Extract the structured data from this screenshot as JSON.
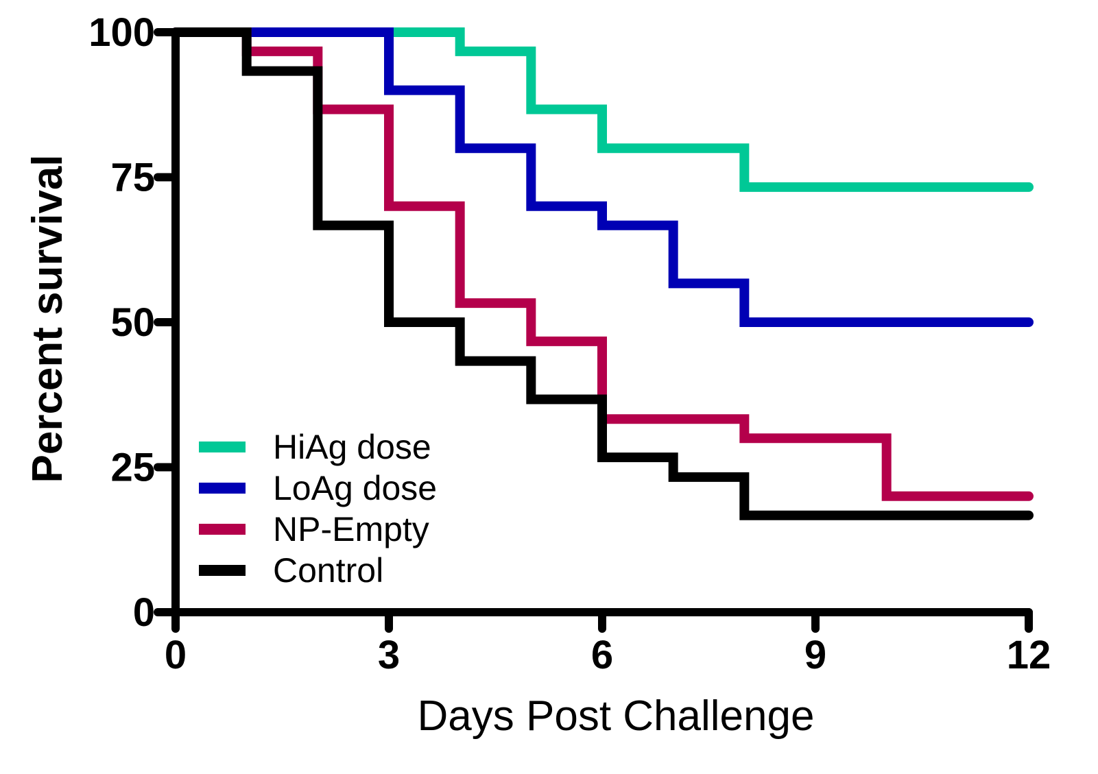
{
  "chart_data": {
    "type": "line",
    "step": true,
    "xlabel": "Days Post Challenge",
    "ylabel": "Percent survival",
    "xlim": [
      0,
      12
    ],
    "ylim": [
      0,
      100
    ],
    "xticks": [
      "0",
      "3",
      "6",
      "9",
      "12"
    ],
    "yticks": [
      "0",
      "25",
      "50",
      "75",
      "100"
    ],
    "legend_position": "bottom-left",
    "grid": false,
    "series": [
      {
        "name": "HiAg dose",
        "color": "#00c896",
        "x": [
          0,
          4,
          5,
          6,
          8,
          12
        ],
        "y": [
          100,
          96.7,
          86.7,
          80,
          73.3,
          73.3
        ]
      },
      {
        "name": "LoAg dose",
        "color": "#0000b4",
        "x": [
          0,
          3,
          4,
          5,
          6,
          7,
          8,
          12
        ],
        "y": [
          100,
          90,
          80,
          70,
          66.7,
          56.7,
          50,
          50
        ]
      },
      {
        "name": "NP-Empty",
        "color": "#b4004b",
        "x": [
          0,
          1,
          2,
          3,
          4,
          5,
          6,
          8,
          10,
          12
        ],
        "y": [
          100,
          96.7,
          86.7,
          70,
          53.3,
          46.7,
          33.3,
          30,
          20,
          20
        ]
      },
      {
        "name": "Control",
        "color": "#000000",
        "x": [
          0,
          1,
          2,
          3,
          4,
          5,
          6,
          7,
          8,
          12
        ],
        "y": [
          100,
          93.3,
          66.7,
          50,
          43.3,
          36.7,
          26.7,
          23.3,
          16.7,
          16.7
        ]
      }
    ]
  }
}
